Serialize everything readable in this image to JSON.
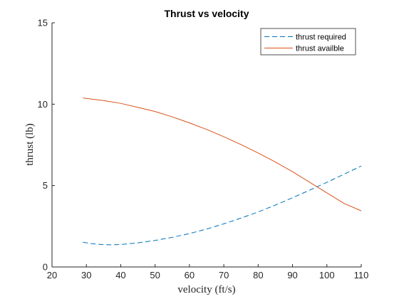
{
  "chart_data": {
    "type": "line",
    "title": "Thrust vs velocity",
    "xlabel": "velocity (ft/s)",
    "ylabel": "thrust (lb)",
    "xlim": [
      20,
      110
    ],
    "ylim": [
      0,
      15
    ],
    "xticks": [
      20,
      30,
      40,
      50,
      60,
      70,
      80,
      90,
      100,
      110
    ],
    "yticks": [
      0,
      5,
      10,
      15
    ],
    "grid": false,
    "legend_position": "top-right",
    "series": [
      {
        "name": "thrust required",
        "color": "#0072BD",
        "style": "dashed",
        "x": [
          29,
          32,
          35,
          37,
          40,
          45,
          50,
          55,
          60,
          65,
          70,
          75,
          80,
          85,
          90,
          95,
          100,
          105,
          110
        ],
        "y": [
          1.52,
          1.42,
          1.37,
          1.36,
          1.38,
          1.48,
          1.63,
          1.82,
          2.05,
          2.33,
          2.65,
          3.0,
          3.38,
          3.8,
          4.25,
          4.72,
          5.2,
          5.7,
          6.2
        ]
      },
      {
        "name": "thrust availble",
        "color": "#D95319",
        "style": "solid",
        "x": [
          29,
          35,
          40,
          45,
          50,
          55,
          60,
          65,
          70,
          75,
          80,
          85,
          90,
          95,
          100,
          105,
          110
        ],
        "y": [
          10.38,
          10.22,
          10.05,
          9.8,
          9.55,
          9.22,
          8.85,
          8.45,
          8.0,
          7.52,
          7.0,
          6.45,
          5.85,
          5.2,
          4.55,
          3.9,
          3.45
        ]
      }
    ]
  }
}
